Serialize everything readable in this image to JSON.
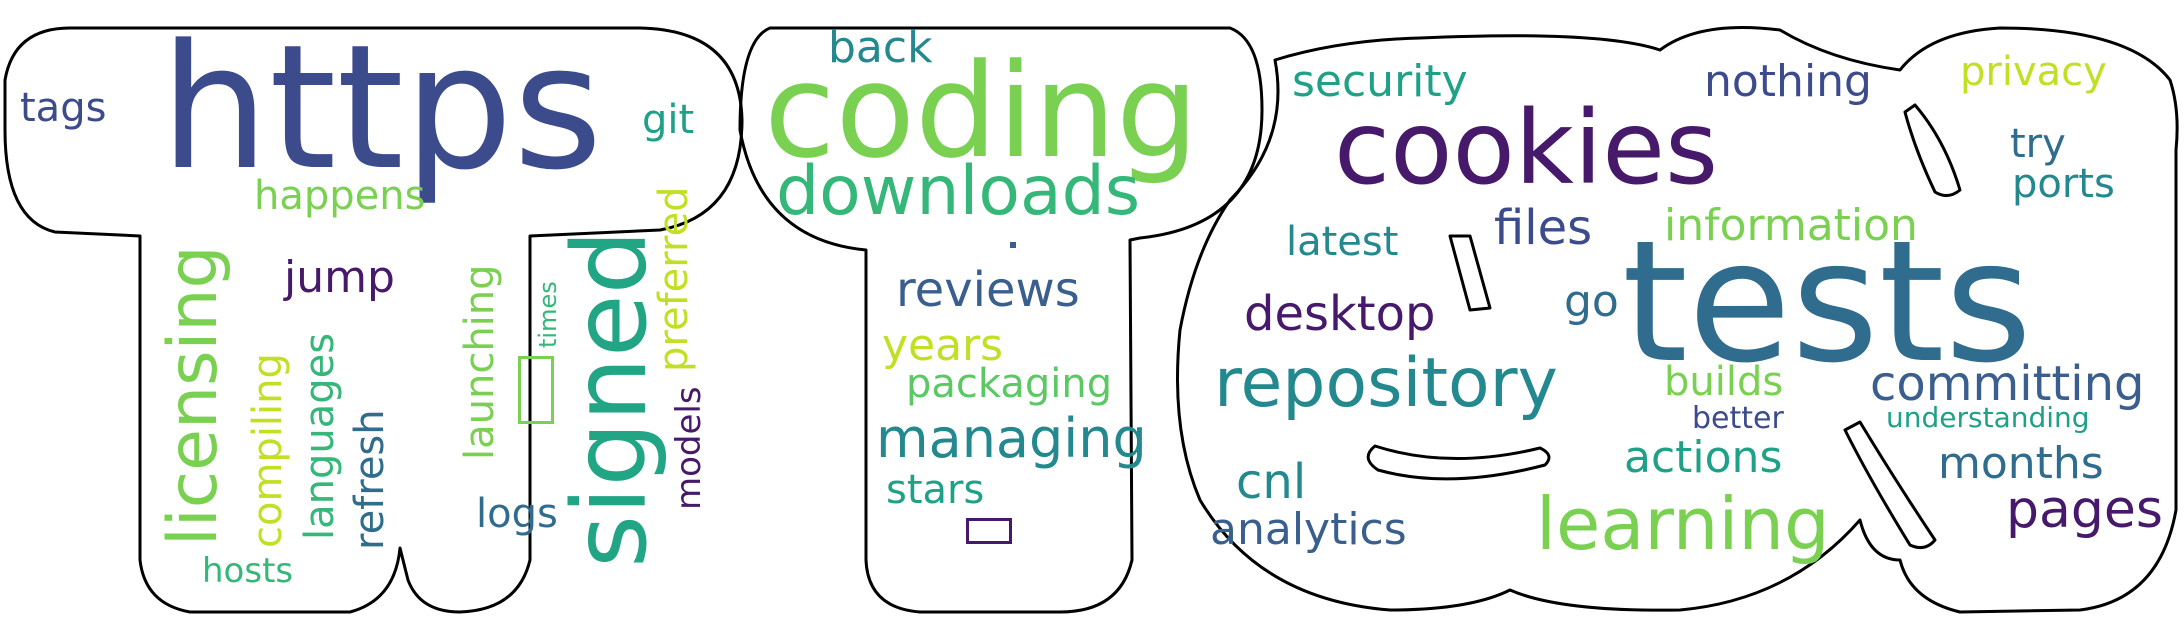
{
  "palette": {
    "dark_purple": "#46196a",
    "indigo": "#3c4b8c",
    "blue": "#3a5f8e",
    "steel": "#2f6c8e",
    "teal": "#23898e",
    "sea": "#1fa187",
    "green": "#35b779",
    "lime": "#7ad151",
    "yellow": "#c2df23",
    "outline": "#000000"
  },
  "words": [
    {
      "text": "https",
      "color": "#3c4b8c"
    },
    {
      "text": "tags",
      "color": "#3c4b8c"
    },
    {
      "text": "git",
      "color": "#1fa187"
    },
    {
      "text": "happens",
      "color": "#7ad151"
    },
    {
      "text": "licensing",
      "color": "#7ad151"
    },
    {
      "text": "signed",
      "color": "#21a585"
    },
    {
      "text": "jump",
      "color": "#46196a"
    },
    {
      "text": "compiling",
      "color": "#c2df23"
    },
    {
      "text": "languages",
      "color": "#35b779"
    },
    {
      "text": "refresh",
      "color": "#2f6c8e"
    },
    {
      "text": "launching",
      "color": "#7ad151"
    },
    {
      "text": "times",
      "color": "#35b779"
    },
    {
      "text": "preferred",
      "color": "#c2df23"
    },
    {
      "text": "models",
      "color": "#46196a"
    },
    {
      "text": "logs",
      "color": "#2f6c8e"
    },
    {
      "text": "hosts",
      "color": "#35b779"
    },
    {
      "text": "back",
      "color": "#23898e"
    },
    {
      "text": "coding",
      "color": "#7ad151"
    },
    {
      "text": "downloads",
      "color": "#35b779"
    },
    {
      "text": "reviews",
      "color": "#3a5f8e"
    },
    {
      "text": "years",
      "color": "#c2df23"
    },
    {
      "text": "packaging",
      "color": "#5cc863"
    },
    {
      "text": "managing",
      "color": "#23898e"
    },
    {
      "text": "stars",
      "color": "#1fa187"
    },
    {
      "text": "security",
      "color": "#1fa187"
    },
    {
      "text": "nothing",
      "color": "#3c4b8c"
    },
    {
      "text": "privacy",
      "color": "#c2df23"
    },
    {
      "text": "cookies",
      "color": "#46196a"
    },
    {
      "text": "try",
      "color": "#2f6c8e"
    },
    {
      "text": "ports",
      "color": "#23898e"
    },
    {
      "text": "files",
      "color": "#3c4b8c"
    },
    {
      "text": "information",
      "color": "#7ad151"
    },
    {
      "text": "latest",
      "color": "#23898e"
    },
    {
      "text": "tests",
      "color": "#2f6c8e"
    },
    {
      "text": "desktop",
      "color": "#46196a"
    },
    {
      "text": "go",
      "color": "#2f6c8e"
    },
    {
      "text": "repository",
      "color": "#23898e"
    },
    {
      "text": "builds",
      "color": "#7ad151"
    },
    {
      "text": "committing",
      "color": "#3a5f8e"
    },
    {
      "text": "better",
      "color": "#3c4b8c"
    },
    {
      "text": "understanding",
      "color": "#1fa187"
    },
    {
      "text": "actions",
      "color": "#1fa187"
    },
    {
      "text": "months",
      "color": "#2f6c8e"
    },
    {
      "text": "cnl",
      "color": "#23898e"
    },
    {
      "text": "pages",
      "color": "#46196a"
    },
    {
      "text": "analytics",
      "color": "#3a5f8e"
    },
    {
      "text": "learning",
      "color": "#7ad151"
    }
  ]
}
